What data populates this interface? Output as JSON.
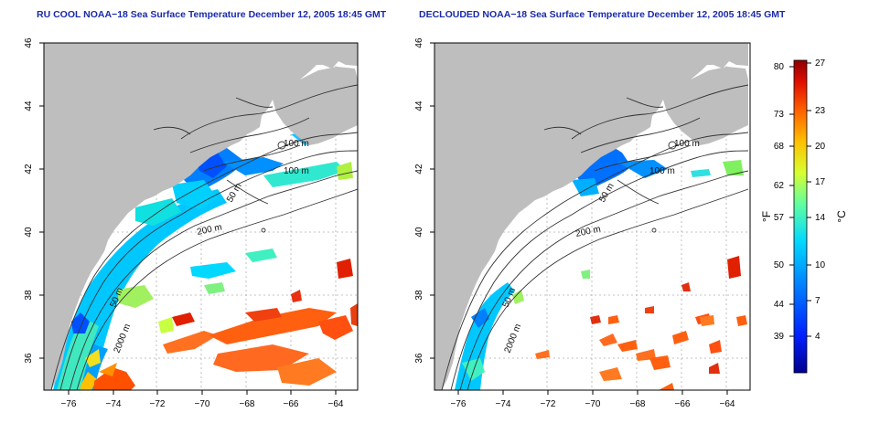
{
  "panels": [
    {
      "id": "left",
      "title": "RU COOL NOAA−18 Sea Surface Temperature December 12, 2005 18:45 GMT"
    },
    {
      "id": "right",
      "title": "DECLOUDED NOAA−18 Sea Surface Temperature December 12, 2005 18:45 GMT"
    }
  ],
  "axes": {
    "lon_ticks": [
      "−76",
      "−74",
      "−72",
      "−70",
      "−68",
      "−66",
      "−64"
    ],
    "lat_ticks": [
      "36",
      "38",
      "40",
      "42",
      "44",
      "46"
    ],
    "lon_range": [
      -77.0,
      -63.0
    ],
    "lat_range": [
      35.0,
      46.0
    ]
  },
  "contour_labels": {
    "m100_a": "100 m",
    "m100_b": "100 m",
    "m50": "50 m",
    "m200": "200 m",
    "m50_b": "50 m",
    "m2000": "2000 m"
  },
  "colorbar": {
    "fahrenheit_label": "°F",
    "celsius_label": "°C",
    "fahrenheit_ticks": [
      "80",
      "73",
      "68",
      "62",
      "57",
      "50",
      "44",
      "39"
    ],
    "celsius_ticks": [
      "27",
      "23",
      "20",
      "17",
      "14",
      "10",
      "7",
      "4"
    ],
    "colors": [
      "#00008f",
      "#0020ff",
      "#0080ff",
      "#00d8ff",
      "#60ffa0",
      "#d8ff30",
      "#ffc000",
      "#ff6000",
      "#e01000",
      "#8f0000"
    ]
  },
  "map_colors": {
    "land": "#bebebe",
    "ocean": "#ffffff",
    "contour": "#333333"
  }
}
